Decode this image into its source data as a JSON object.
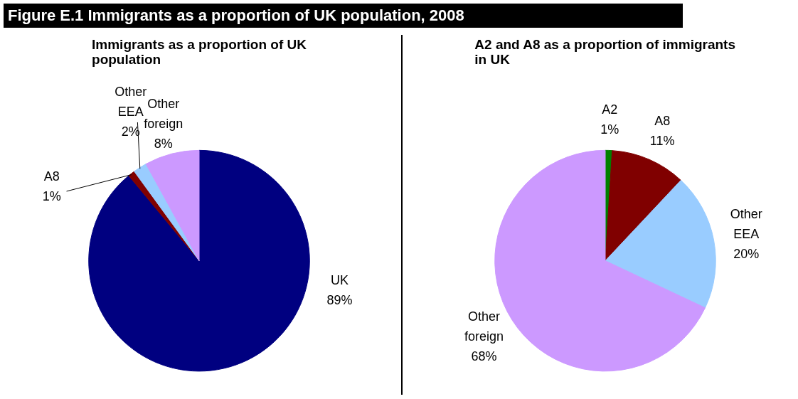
{
  "chart_data": [
    {
      "type": "pie",
      "title": "Immigrants as a proportion of UK population",
      "annotations": [
        "Figure E.1 Immigrants as a proportion of UK population, 2008"
      ],
      "categories": [
        "UK",
        "A8",
        "Other EEA",
        "Other foreign"
      ],
      "values": [
        89,
        1,
        2,
        8
      ],
      "colors": [
        "#000080",
        "#800000",
        "#99ccff",
        "#cc99ff"
      ],
      "value_labels": [
        "89%",
        "1%",
        "2%",
        "8%"
      ]
    },
    {
      "type": "pie",
      "title": "A2 and A8 as a proportion of immigrants in UK",
      "categories": [
        "A2",
        "A8",
        "Other EEA",
        "Other foreign"
      ],
      "values": [
        1,
        11,
        20,
        68
      ],
      "colors": [
        "#008000",
        "#800000",
        "#99ccff",
        "#cc99ff"
      ],
      "value_labels": [
        "1%",
        "11%",
        "20%",
        "68%"
      ]
    }
  ]
}
